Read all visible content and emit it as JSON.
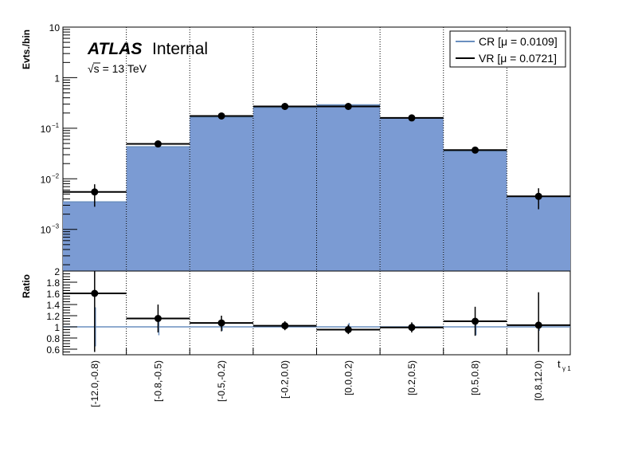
{
  "chart_data": {
    "type": "bar",
    "categories": [
      "[-12.0,-0.8)",
      "[-0.8,-0.5)",
      "[-0.5,-0.2)",
      "[-0.2,0.0)",
      "[0.0,0.2)",
      "[0.2,0.5)",
      "[0.5,0.8)",
      "[0.8,12.0)"
    ],
    "xlabel": "t",
    "xlabel_sub": "γ 1",
    "upper": {
      "ylabel": "Evts./bin",
      "yscale": "log",
      "ylim": [
        0.00015,
        10
      ],
      "major_ticks": [
        {
          "label": "10",
          "value": 10
        },
        {
          "label": "1",
          "value": 1
        },
        {
          "label": "10",
          "sup": "−1",
          "value": 0.1
        },
        {
          "label": "10",
          "sup": "−2",
          "value": 0.01
        },
        {
          "label": "10",
          "sup": "−3",
          "value": 0.001
        }
      ],
      "series": [
        {
          "name": "CR [μ = 0.0109]",
          "style": "filled",
          "color": "#7b9bd3",
          "line_color": "#6a8fbf",
          "values": [
            0.0035,
            0.043,
            0.165,
            0.255,
            0.29,
            0.16,
            0.035,
            0.0045
          ]
        },
        {
          "name": "VR [μ = 0.0721]",
          "style": "points",
          "color": "#000000",
          "values": [
            0.0055,
            0.049,
            0.175,
            0.27,
            0.27,
            0.16,
            0.037,
            0.0045
          ],
          "err_low": [
            0.0028,
            0.043,
            0.16,
            0.255,
            0.255,
            0.147,
            0.032,
            0.0025
          ],
          "err_high": [
            0.0078,
            0.055,
            0.19,
            0.285,
            0.285,
            0.173,
            0.042,
            0.0065
          ]
        }
      ],
      "legend_position": "top-right"
    },
    "lower": {
      "ylabel": "Ratio",
      "ylim": [
        0.5,
        2.0
      ],
      "ticks": [
        "0.6",
        "0.8",
        "1",
        "1.2",
        "1.4",
        "1.6",
        "1.8",
        "2"
      ],
      "reference": 1,
      "values": [
        1.6,
        1.15,
        1.07,
        1.02,
        0.95,
        0.99,
        1.1,
        1.03
      ],
      "err_low": [
        0.55,
        0.9,
        0.92,
        0.94,
        0.87,
        0.9,
        0.84,
        0.55
      ],
      "err_high": [
        2.0,
        1.4,
        1.2,
        1.1,
        1.04,
        1.08,
        1.36,
        1.62
      ],
      "cr_err_low": [
        0.65,
        0.85,
        0.93,
        0.97,
        0.93,
        0.94,
        0.85,
        0.93
      ],
      "cr_err_high": [
        1.35,
        1.15,
        1.07,
        1.03,
        1.07,
        1.06,
        1.15,
        1.07
      ]
    },
    "grid": "vertical-dotted",
    "annotations": {
      "experiment": "ATLAS",
      "status": "Internal",
      "energy": "√s = 13 TeV"
    }
  }
}
